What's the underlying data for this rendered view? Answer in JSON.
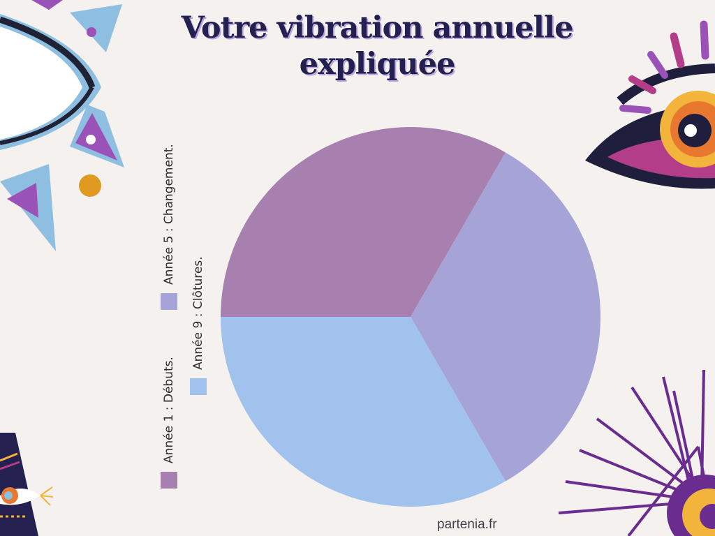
{
  "title": "Votre vibration annuelle expliquée",
  "footer": "partenia.fr",
  "colors": {
    "background": "#f4f1ee",
    "debuts": "#a880b0",
    "changement": "#a6a3d6",
    "clotures": "#a1c2ed"
  },
  "chart_data": {
    "type": "pie",
    "labels": [
      "Année 1 : Débuts.",
      "Année 5 : Changement.",
      "Année 9 : Clôtures."
    ],
    "values": [
      33.3,
      33.3,
      33.3
    ],
    "colors": [
      "#a880b0",
      "#a6a3d6",
      "#a1c2ed"
    ],
    "legend_position": "left (rotated, vertical)"
  },
  "decorations": [
    "eye-illustration-left",
    "eye-illustration-right",
    "starburst-eye-bottom-right",
    "tribal-eye-bottom-left"
  ]
}
